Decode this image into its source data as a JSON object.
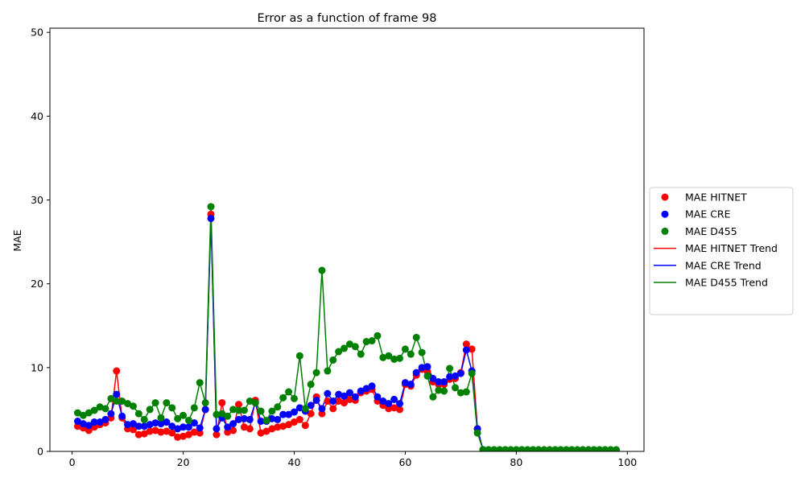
{
  "chart_data": {
    "type": "scatter",
    "title": "Error as a function of frame 98",
    "xlabel": "",
    "ylabel": "MAE",
    "xlim": [
      -4,
      103
    ],
    "ylim": [
      0,
      50.5
    ],
    "xticks": [
      0,
      20,
      40,
      60,
      80,
      100
    ],
    "yticks": [
      0,
      10,
      20,
      30,
      40,
      50
    ],
    "grid": false,
    "legend_position": "outside-right",
    "x": [
      1,
      2,
      3,
      4,
      5,
      6,
      7,
      8,
      9,
      10,
      11,
      12,
      13,
      14,
      15,
      16,
      17,
      18,
      19,
      20,
      21,
      22,
      23,
      24,
      25,
      26,
      27,
      28,
      29,
      30,
      31,
      32,
      33,
      34,
      35,
      36,
      37,
      38,
      39,
      40,
      41,
      42,
      43,
      44,
      45,
      46,
      47,
      48,
      49,
      50,
      51,
      52,
      53,
      54,
      55,
      56,
      57,
      58,
      59,
      60,
      61,
      62,
      63,
      64,
      65,
      66,
      67,
      68,
      69,
      70,
      71,
      72,
      73,
      74,
      75,
      76,
      77,
      78,
      79,
      80,
      81,
      82,
      83,
      84,
      85,
      86,
      87,
      88,
      89,
      90,
      91,
      92,
      93,
      94,
      95,
      96,
      97,
      98
    ],
    "series": [
      {
        "name": "MAE HITNET",
        "color": "#ff0000",
        "values": [
          3.0,
          2.8,
          2.5,
          2.9,
          3.2,
          3.4,
          4.0,
          9.6,
          4.0,
          2.7,
          2.6,
          2.0,
          2.1,
          2.4,
          2.5,
          2.3,
          2.4,
          2.2,
          1.7,
          1.8,
          2.0,
          2.3,
          2.2,
          5.0,
          28.3,
          2.0,
          5.8,
          2.3,
          2.5,
          5.6,
          2.9,
          2.7,
          6.1,
          2.2,
          2.4,
          2.7,
          2.9,
          3.0,
          3.2,
          3.5,
          3.8,
          3.1,
          4.5,
          6.5,
          4.5,
          6.0,
          5.1,
          6.0,
          5.8,
          6.2,
          6.1,
          7.0,
          7.2,
          7.4,
          6.0,
          5.5,
          5.1,
          5.2,
          5.0,
          8.0,
          7.8,
          9.1,
          9.8,
          9.5,
          8.3,
          8.0,
          8.0,
          8.6,
          8.7,
          9.4,
          12.8,
          12.2,
          2.7,
          0.2,
          0.1,
          0.1,
          0.1,
          0.1,
          0.1,
          0.1,
          0.1,
          0.1,
          0.1,
          0.1,
          0.1,
          0.1,
          0.1,
          0.1,
          0.1,
          0.1,
          0.1,
          0.1,
          0.1,
          0.1,
          0.1,
          0.1,
          0.1,
          0.1
        ]
      },
      {
        "name": "MAE CRE",
        "color": "#0000ff",
        "values": [
          3.6,
          3.3,
          3.1,
          3.5,
          3.5,
          3.8,
          4.5,
          6.8,
          4.2,
          3.2,
          3.3,
          3.0,
          3.0,
          3.2,
          3.4,
          3.3,
          3.5,
          3.0,
          2.7,
          2.9,
          2.9,
          3.4,
          2.8,
          5.0,
          27.8,
          2.7,
          4.0,
          2.9,
          3.3,
          3.8,
          3.9,
          3.8,
          5.8,
          3.6,
          3.6,
          3.9,
          3.8,
          4.4,
          4.4,
          4.7,
          5.2,
          4.8,
          5.5,
          6.1,
          5.1,
          6.9,
          6.0,
          6.8,
          6.6,
          7.0,
          6.5,
          7.2,
          7.5,
          7.8,
          6.5,
          6.0,
          5.7,
          6.2,
          5.7,
          8.2,
          8.0,
          9.4,
          10.0,
          10.1,
          8.7,
          8.3,
          8.3,
          8.9,
          9.0,
          9.3,
          12.1,
          9.6,
          2.7,
          0.2,
          0.1,
          0.1,
          0.1,
          0.1,
          0.1,
          0.1,
          0.1,
          0.1,
          0.1,
          0.1,
          0.1,
          0.1,
          0.1,
          0.1,
          0.1,
          0.1,
          0.1,
          0.1,
          0.1,
          0.1,
          0.1,
          0.1,
          0.1,
          0.1
        ]
      },
      {
        "name": "MAE D455",
        "color": "#008000",
        "values": [
          4.6,
          4.3,
          4.6,
          4.9,
          5.3,
          5.1,
          6.3,
          6.0,
          6.0,
          5.7,
          5.4,
          4.5,
          3.8,
          5.0,
          5.8,
          4.0,
          5.8,
          5.2,
          3.9,
          4.3,
          3.7,
          5.2,
          8.2,
          5.8,
          29.2,
          4.4,
          4.5,
          4.2,
          5.0,
          4.9,
          4.9,
          6.0,
          5.8,
          4.8,
          3.7,
          4.8,
          5.3,
          6.4,
          7.1,
          6.3,
          11.4,
          5.1,
          8.0,
          9.4,
          21.6,
          9.6,
          10.9,
          11.9,
          12.3,
          12.8,
          12.5,
          11.6,
          13.1,
          13.2,
          13.8,
          11.2,
          11.4,
          11.0,
          11.1,
          12.2,
          11.6,
          13.6,
          11.8,
          9.0,
          6.5,
          7.3,
          7.2,
          9.9,
          7.6,
          7.0,
          7.1,
          9.3,
          2.2,
          0.2,
          0.2,
          0.2,
          0.2,
          0.2,
          0.2,
          0.2,
          0.2,
          0.2,
          0.2,
          0.2,
          0.2,
          0.2,
          0.2,
          0.2,
          0.2,
          0.2,
          0.2,
          0.2,
          0.2,
          0.2,
          0.2,
          0.2,
          0.2,
          0.2
        ]
      }
    ],
    "trend_series": [
      {
        "name": "MAE HITNET Trend",
        "color": "#ff0000"
      },
      {
        "name": "MAE CRE Trend",
        "color": "#0000ff"
      },
      {
        "name": "MAE D455 Trend",
        "color": "#008000"
      }
    ]
  }
}
